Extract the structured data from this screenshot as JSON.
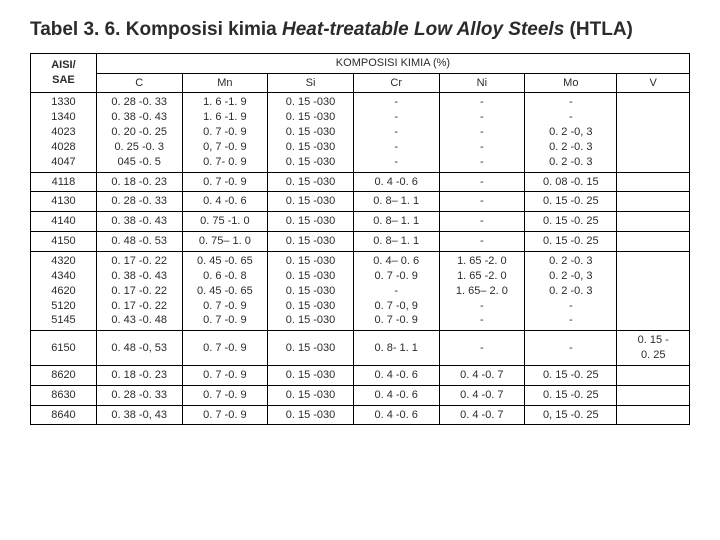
{
  "title_prefix": "Tabel 3. 6. Komposisi kimia ",
  "title_italic": "Heat-treatable Low Alloy Steels",
  "title_suffix": " (HTLA)",
  "header_left": "AISI/\nSAE",
  "header_group": "KOMPOSISI KIMIA (%)",
  "cols": [
    "C",
    "Mn",
    "Si",
    "Cr",
    "Ni",
    "Mo",
    "V"
  ],
  "rows": [
    {
      "id": "1330\n1340\n4023\n4028\n4047",
      "c": "0. 28 -0. 33\n0. 38 -0. 43\n0. 20 -0. 25\n0. 25 -0. 3\n045 -0. 5",
      "mn": "1. 6 -1. 9\n1. 6 -1. 9\n0. 7 -0. 9\n0, 7 -0. 9\n0. 7- 0. 9",
      "si": "0. 15 -030\n0. 15 -030\n0. 15 -030\n0. 15 -030\n0. 15 -030",
      "cr": "-\n-\n-\n-\n-",
      "ni": "-\n-\n-\n-\n-",
      "mo": "-\n-\n0. 2 -0, 3\n0. 2 -0. 3\n0. 2 -0. 3",
      "v": ""
    },
    {
      "id": "4118",
      "c": "0. 18 -0. 23",
      "mn": "0. 7 -0. 9",
      "si": "0. 15 -030",
      "cr": "0. 4 -0. 6",
      "ni": "-",
      "mo": "0. 08 -0. 15",
      "v": ""
    },
    {
      "id": "4130",
      "c": "0. 28 -0. 33",
      "mn": "0. 4 -0. 6",
      "si": "0. 15 -030",
      "cr": "0. 8– 1. 1",
      "ni": "-",
      "mo": "0. 15 -0. 25",
      "v": ""
    },
    {
      "id": "4140",
      "c": "0. 38 -0. 43",
      "mn": "0. 75 -1. 0",
      "si": "0. 15 -030",
      "cr": "0. 8– 1. 1",
      "ni": "-",
      "mo": "0. 15 -0. 25",
      "v": ""
    },
    {
      "id": "4150",
      "c": "0. 48 -0. 53",
      "mn": "0. 75– 1. 0",
      "si": "0. 15 -030",
      "cr": "0. 8– 1. 1",
      "ni": "-",
      "mo": "0. 15 -0. 25",
      "v": ""
    },
    {
      "id": "4320\n4340\n4620\n5120\n5145",
      "c": "0. 17 -0. 22\n0. 38 -0. 43\n0. 17 -0. 22\n0. 17 -0. 22\n0. 43 -0. 48",
      "mn": "0. 45 -0. 65\n0. 6 -0. 8\n0. 45 -0. 65\n0. 7 -0. 9\n0. 7 -0. 9",
      "si": "0. 15 -030\n0. 15 -030\n0. 15 -030\n0. 15 -030\n0. 15 -030",
      "cr": "0. 4– 0. 6\n0. 7 -0. 9\n-\n0. 7 -0, 9\n0. 7 -0. 9",
      "ni": "1. 65 -2. 0\n1. 65 -2. 0\n1. 65– 2. 0\n-\n-",
      "mo": "0. 2 -0. 3\n0. 2 -0, 3\n0. 2 -0. 3\n-\n-",
      "v": ""
    },
    {
      "id": "6150",
      "c": "0. 48 -0, 53",
      "mn": "0. 7 -0. 9",
      "si": "0. 15 -030",
      "cr": "0. 8- 1. 1",
      "ni": "-",
      "mo": "-",
      "v": "0. 15 -\n0. 25"
    },
    {
      "id": "8620",
      "c": "0. 18 -0. 23",
      "mn": "0. 7 -0. 9",
      "si": "0. 15 -030",
      "cr": "0. 4 -0. 6",
      "ni": "0. 4 -0. 7",
      "mo": "0. 15 -0. 25",
      "v": ""
    },
    {
      "id": "8630",
      "c": "0. 28 -0. 33",
      "mn": "0. 7 -0. 9",
      "si": "0. 15 -030",
      "cr": "0. 4 -0. 6",
      "ni": "0. 4 -0. 7",
      "mo": "0. 15 -0. 25",
      "v": ""
    },
    {
      "id": "8640",
      "c": "0. 38 -0, 43",
      "mn": "0. 7 -0. 9",
      "si": "0. 15 -030",
      "cr": "0. 4 -0. 6",
      "ni": "0. 4 -0. 7",
      "mo": "0, 15 -0. 25",
      "v": ""
    }
  ],
  "styles": {
    "title_fontsize": 19,
    "body_fontsize": 11,
    "border_color": "#000000",
    "background_color": "#ffffff",
    "text_color": "#2b2b2b"
  }
}
